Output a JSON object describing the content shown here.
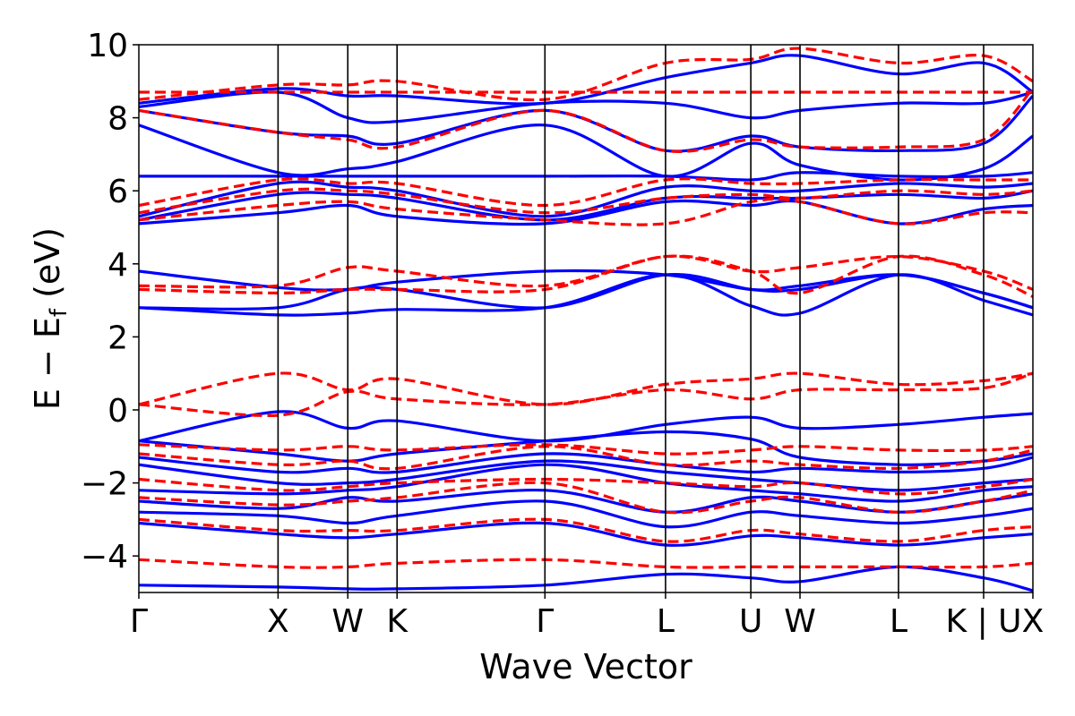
{
  "chart_data": {
    "type": "line",
    "xlabel": "Wave Vector",
    "ylabel": "E − E",
    "ylabel_subscript": "f",
    "ylabel_unit": " (eV)",
    "ylim": [
      -5,
      10
    ],
    "xlim": [
      0,
      1
    ],
    "yticks": [
      -4,
      -2,
      0,
      2,
      4,
      6,
      8,
      10
    ],
    "ytick_labels": [
      "−4",
      "−2",
      "0",
      "2",
      "4",
      "6",
      "8",
      "10"
    ],
    "kpoints": [
      {
        "label": "Γ",
        "x": 0.0
      },
      {
        "label": "X",
        "x": 0.1557
      },
      {
        "label": "W",
        "x": 0.2337
      },
      {
        "label": "K",
        "x": 0.2888
      },
      {
        "label": "Γ",
        "x": 0.4542
      },
      {
        "label": "L",
        "x": 0.5891
      },
      {
        "label": "U",
        "x": 0.6845
      },
      {
        "label": "W",
        "x": 0.7395
      },
      {
        "label": "L",
        "x": 0.8497
      },
      {
        "label": "K | U",
        "x": 0.9449
      },
      {
        "label": "X",
        "x": 1.0
      }
    ],
    "series": [
      {
        "style": "solid",
        "color": "#0000ff",
        "bands": [
          [
            -4.8,
            -4.85,
            -4.9,
            -4.9,
            -4.8,
            -4.5,
            -4.6,
            -4.7,
            -4.3,
            -4.6,
            -4.95
          ],
          [
            -3.1,
            -3.4,
            -3.5,
            -3.4,
            -3.1,
            -3.7,
            -3.45,
            -3.5,
            -3.7,
            -3.5,
            -3.4
          ],
          [
            -2.8,
            -2.9,
            -3.1,
            -2.9,
            -2.5,
            -3.2,
            -2.8,
            -2.9,
            -3.1,
            -2.9,
            -2.7
          ],
          [
            -2.5,
            -2.7,
            -2.4,
            -2.5,
            -2.2,
            -2.8,
            -2.4,
            -2.5,
            -2.8,
            -2.5,
            -2.3
          ],
          [
            -2.2,
            -2.3,
            -2.2,
            -2.1,
            -1.5,
            -2.0,
            -2.2,
            -2.3,
            -2.5,
            -2.2,
            -2.1
          ],
          [
            -1.5,
            -2.0,
            -2.0,
            -1.9,
            -1.4,
            -1.7,
            -1.9,
            -2.0,
            -2.2,
            -2.0,
            -1.9
          ],
          [
            -1.3,
            -1.7,
            -1.6,
            -1.7,
            -1.2,
            -1.5,
            -1.7,
            -1.6,
            -1.7,
            -1.6,
            -1.3
          ],
          [
            -0.85,
            -1.2,
            -1.4,
            -1.2,
            -0.85,
            -0.6,
            -0.8,
            -1.3,
            -1.5,
            -1.4,
            -1.2
          ],
          [
            -0.85,
            -0.05,
            -0.5,
            -0.3,
            -0.85,
            -0.4,
            -0.2,
            -0.5,
            -0.4,
            -0.2,
            -0.1
          ],
          [
            2.8,
            2.6,
            2.65,
            2.75,
            2.8,
            3.7,
            2.85,
            2.65,
            3.7,
            3.0,
            2.6
          ],
          [
            2.8,
            2.8,
            3.3,
            3.3,
            2.8,
            3.7,
            3.3,
            3.3,
            3.7,
            3.2,
            2.8
          ],
          [
            3.8,
            3.35,
            3.3,
            3.5,
            3.8,
            3.7,
            3.3,
            3.4,
            3.7,
            3.2,
            2.8
          ],
          [
            5.1,
            5.4,
            5.6,
            5.3,
            5.1,
            5.7,
            5.6,
            5.7,
            5.1,
            5.5,
            5.6
          ],
          [
            5.2,
            5.9,
            5.9,
            5.8,
            5.2,
            5.8,
            5.8,
            5.8,
            5.9,
            5.8,
            6.0
          ],
          [
            5.3,
            6.2,
            6.1,
            6.0,
            5.3,
            6.1,
            6.0,
            6.0,
            6.2,
            6.1,
            6.2
          ],
          [
            6.4,
            6.4,
            6.4,
            6.4,
            6.4,
            6.4,
            6.3,
            6.5,
            6.4,
            6.4,
            6.5
          ],
          [
            7.8,
            6.5,
            6.6,
            6.8,
            7.8,
            6.4,
            7.3,
            6.7,
            6.3,
            6.6,
            7.5
          ],
          [
            8.2,
            7.6,
            7.5,
            7.3,
            8.2,
            7.1,
            7.5,
            7.2,
            7.1,
            7.3,
            8.6
          ],
          [
            8.3,
            8.7,
            8.0,
            7.9,
            8.4,
            8.4,
            8.0,
            8.2,
            8.4,
            8.4,
            8.7
          ],
          [
            8.4,
            8.8,
            8.6,
            8.6,
            8.4,
            9.1,
            9.5,
            9.7,
            9.2,
            9.5,
            8.7
          ]
        ]
      },
      {
        "style": "dashed",
        "color": "#ff0000",
        "bands": [
          [
            -4.1,
            -4.3,
            -4.3,
            -4.2,
            -4.1,
            -4.3,
            -4.3,
            -4.3,
            -4.3,
            -4.3,
            -4.2
          ],
          [
            -3.0,
            -3.3,
            -3.3,
            -3.3,
            -3.0,
            -3.6,
            -3.3,
            -3.4,
            -3.6,
            -3.3,
            -3.2
          ],
          [
            -2.4,
            -2.6,
            -2.5,
            -2.4,
            -2.0,
            -2.8,
            -2.5,
            -2.4,
            -2.8,
            -2.5,
            -2.2
          ],
          [
            -1.9,
            -2.2,
            -2.1,
            -2.0,
            -1.9,
            -2.0,
            -2.1,
            -2.0,
            -2.3,
            -2.1,
            -1.9
          ],
          [
            -1.2,
            -1.5,
            -1.4,
            -1.6,
            -1.0,
            -1.5,
            -1.4,
            -1.5,
            -1.6,
            -1.4,
            -1.1
          ],
          [
            -0.95,
            -1.1,
            -1.0,
            -1.1,
            -0.95,
            -1.2,
            -1.1,
            -1.0,
            -1.1,
            -1.1,
            -1.0
          ],
          [
            0.15,
            -0.15,
            0.5,
            0.3,
            0.15,
            0.55,
            0.3,
            0.55,
            0.55,
            0.6,
            1.0
          ],
          [
            0.15,
            1.0,
            0.55,
            0.85,
            0.15,
            0.7,
            0.85,
            1.0,
            0.7,
            0.8,
            1.0
          ],
          [
            3.3,
            3.2,
            3.3,
            3.3,
            3.3,
            4.2,
            3.8,
            3.2,
            4.2,
            3.7,
            3.1
          ],
          [
            3.4,
            3.4,
            3.9,
            3.8,
            3.4,
            4.2,
            3.8,
            3.9,
            4.2,
            3.8,
            3.3
          ],
          [
            5.2,
            5.6,
            5.7,
            5.5,
            5.2,
            5.1,
            5.7,
            5.7,
            5.1,
            5.4,
            5.4
          ],
          [
            5.4,
            6.0,
            6.0,
            5.9,
            5.4,
            5.8,
            5.9,
            5.8,
            6.0,
            5.9,
            6.0
          ],
          [
            5.6,
            6.3,
            6.2,
            6.2,
            5.6,
            6.3,
            6.2,
            6.2,
            6.3,
            6.3,
            6.3
          ],
          [
            8.2,
            7.6,
            7.4,
            7.2,
            8.2,
            7.1,
            7.4,
            7.2,
            7.2,
            7.4,
            8.8
          ],
          [
            8.7,
            8.7,
            8.7,
            8.7,
            8.7,
            8.7,
            8.7,
            8.7,
            8.7,
            8.7,
            8.7
          ],
          [
            8.5,
            8.9,
            8.9,
            9.0,
            8.5,
            9.5,
            9.6,
            9.9,
            9.5,
            9.7,
            9.0
          ]
        ]
      }
    ]
  }
}
